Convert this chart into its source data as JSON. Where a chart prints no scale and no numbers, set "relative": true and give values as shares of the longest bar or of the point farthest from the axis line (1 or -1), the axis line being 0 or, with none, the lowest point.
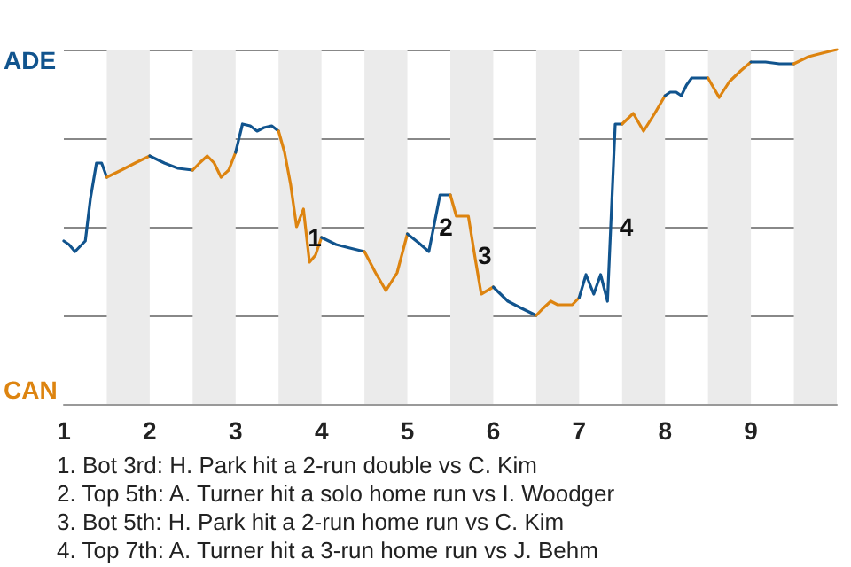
{
  "chart_data": {
    "type": "line",
    "relative": true,
    "xlim": [
      1,
      10
    ],
    "xticks": [
      1,
      2,
      3,
      4,
      5,
      6,
      7,
      8,
      9
    ],
    "grid": "y",
    "series": [
      {
        "color": "#11548e",
        "x": [
          1,
          1.06,
          1.13,
          1.19,
          1.25,
          1.31,
          1.38,
          1.44,
          1.5
        ],
        "values": [
          0.46,
          0.45,
          0.43,
          0.445,
          0.46,
          0.58,
          0.68,
          0.68,
          0.64
        ]
      },
      {
        "color": "#dd8410",
        "x": [
          1.5,
          1.67,
          1.83,
          2
        ],
        "values": [
          0.64,
          0.66,
          0.68,
          0.7
        ]
      },
      {
        "color": "#11548e",
        "x": [
          2,
          2.17,
          2.33,
          2.5
        ],
        "values": [
          0.7,
          0.68,
          0.665,
          0.66
        ]
      },
      {
        "color": "#dd8410",
        "x": [
          2.5,
          2.58,
          2.67,
          2.75,
          2.83,
          2.92,
          3
        ],
        "values": [
          0.66,
          0.68,
          0.7,
          0.68,
          0.64,
          0.66,
          0.71
        ]
      },
      {
        "color": "#11548e",
        "x": [
          3,
          3.08,
          3.17,
          3.25,
          3.33,
          3.42,
          3.5
        ],
        "values": [
          0.71,
          0.79,
          0.785,
          0.77,
          0.78,
          0.785,
          0.77
        ]
      },
      {
        "color": "#dd8410",
        "x": [
          3.5,
          3.57,
          3.64,
          3.71,
          3.79,
          3.86,
          3.93,
          4
        ],
        "values": [
          0.77,
          0.71,
          0.62,
          0.5,
          0.55,
          0.4,
          0.42,
          0.47
        ]
      },
      {
        "color": "#11548e",
        "x": [
          4,
          4.17,
          4.33,
          4.5
        ],
        "values": [
          0.47,
          0.45,
          0.44,
          0.43
        ]
      },
      {
        "color": "#dd8410",
        "x": [
          4.5,
          4.63,
          4.75,
          4.88,
          5
        ],
        "values": [
          0.43,
          0.37,
          0.32,
          0.37,
          0.48
        ]
      },
      {
        "color": "#11548e",
        "x": [
          5,
          5.13,
          5.25,
          5.38,
          5.5
        ],
        "values": [
          0.48,
          0.455,
          0.43,
          0.59,
          0.59
        ]
      },
      {
        "color": "#dd8410",
        "x": [
          5.5,
          5.57,
          5.64,
          5.71,
          5.79,
          5.86,
          5.93,
          6
        ],
        "values": [
          0.59,
          0.53,
          0.53,
          0.53,
          0.41,
          0.31,
          0.32,
          0.33
        ]
      },
      {
        "color": "#11548e",
        "x": [
          6,
          6.17,
          6.33,
          6.5
        ],
        "values": [
          0.33,
          0.29,
          0.27,
          0.25
        ]
      },
      {
        "color": "#dd8410",
        "x": [
          6.5,
          6.58,
          6.67,
          6.75,
          6.83,
          6.92,
          7
        ],
        "values": [
          0.25,
          0.27,
          0.29,
          0.28,
          0.28,
          0.28,
          0.3
        ]
      },
      {
        "color": "#11548e",
        "x": [
          7,
          7.08,
          7.17,
          7.25,
          7.33,
          7.42,
          7.5
        ],
        "values": [
          0.3,
          0.365,
          0.31,
          0.365,
          0.29,
          0.79,
          0.79
        ]
      },
      {
        "color": "#dd8410",
        "x": [
          7.5,
          7.63,
          7.75,
          7.88,
          8
        ],
        "values": [
          0.79,
          0.82,
          0.77,
          0.82,
          0.87
        ]
      },
      {
        "color": "#11548e",
        "x": [
          8,
          8.06,
          8.13,
          8.19,
          8.25,
          8.31,
          8.38,
          8.44,
          8.5
        ],
        "values": [
          0.87,
          0.88,
          0.88,
          0.87,
          0.9,
          0.92,
          0.92,
          0.92,
          0.92
        ]
      },
      {
        "color": "#dd8410",
        "x": [
          8.5,
          8.63,
          8.75,
          8.88,
          9
        ],
        "values": [
          0.92,
          0.865,
          0.91,
          0.94,
          0.965
        ]
      },
      {
        "color": "#11548e",
        "x": [
          9,
          9.17,
          9.33,
          9.5
        ],
        "values": [
          0.965,
          0.965,
          0.96,
          0.96
        ]
      },
      {
        "color": "#dd8410",
        "x": [
          9.5,
          9.67,
          9.83,
          10
        ],
        "values": [
          0.96,
          0.98,
          0.99,
          1
        ]
      }
    ],
    "bands": [
      {
        "axis": "x",
        "from": 1.5,
        "to": 2,
        "color": "#ebebeb"
      },
      {
        "axis": "x",
        "from": 2.5,
        "to": 3,
        "color": "#ebebeb"
      },
      {
        "axis": "x",
        "from": 3.5,
        "to": 4,
        "color": "#ebebeb"
      },
      {
        "axis": "x",
        "from": 4.5,
        "to": 5,
        "color": "#ebebeb"
      },
      {
        "axis": "x",
        "from": 5.5,
        "to": 6,
        "color": "#ebebeb"
      },
      {
        "axis": "x",
        "from": 6.5,
        "to": 7,
        "color": "#ebebeb"
      },
      {
        "axis": "x",
        "from": 7.5,
        "to": 8,
        "color": "#ebebeb"
      },
      {
        "axis": "x",
        "from": 8.5,
        "to": 9,
        "color": "#ebebeb"
      },
      {
        "axis": "x",
        "from": 9.5,
        "to": 10,
        "color": "#ebebeb"
      }
    ],
    "annotations": [
      "ADE",
      "CAN",
      {
        "text": "1",
        "x": 3.92,
        "y": 0.47
      },
      {
        "text": "2",
        "x": 5.45,
        "y": 0.5
      },
      {
        "text": "3",
        "x": 5.9,
        "y": 0.42
      },
      {
        "text": "4",
        "x": 7.55,
        "y": 0.5
      },
      "1. Bot 3rd: H. Park hit a 2-run double vs C. Kim",
      "2. Top 5th: A. Turner hit a solo home run vs I. Woodger",
      "3. Bot 5th: H. Park hit a 2-run home run vs C. Kim",
      "4. Top 7th: A. Turner hit a 3-run home run vs J. Behm"
    ]
  }
}
